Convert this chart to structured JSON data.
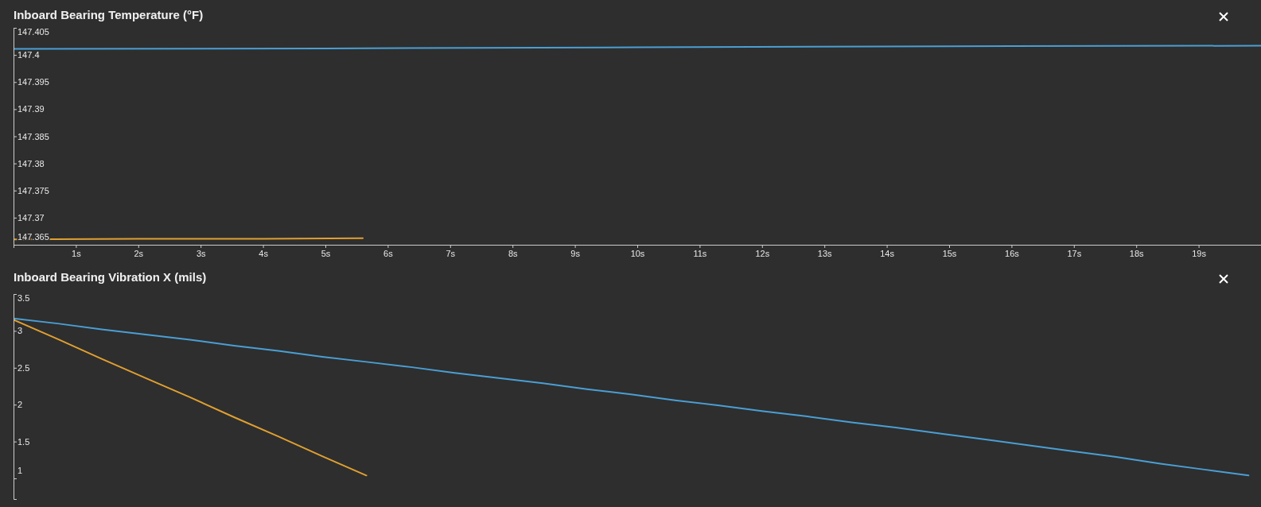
{
  "chart_data": [
    {
      "type": "line",
      "title": "Inboard Bearing Temperature (°F)",
      "xlim": [
        0,
        20
      ],
      "xticks": [
        {
          "value": 1,
          "label": "1s"
        },
        {
          "value": 2,
          "label": "2s"
        },
        {
          "value": 3,
          "label": "3s"
        },
        {
          "value": 4,
          "label": "4s"
        },
        {
          "value": 5,
          "label": "5s"
        },
        {
          "value": 6,
          "label": "6s"
        },
        {
          "value": 7,
          "label": "7s"
        },
        {
          "value": 8,
          "label": "8s"
        },
        {
          "value": 9,
          "label": "9s"
        },
        {
          "value": 10,
          "label": "10s"
        },
        {
          "value": 11,
          "label": "11s"
        },
        {
          "value": 12,
          "label": "12s"
        },
        {
          "value": 13,
          "label": "13s"
        },
        {
          "value": 14,
          "label": "14s"
        },
        {
          "value": 15,
          "label": "15s"
        },
        {
          "value": 16,
          "label": "16s"
        },
        {
          "value": 17,
          "label": "17s"
        },
        {
          "value": 18,
          "label": "18s"
        },
        {
          "value": 19,
          "label": "19s"
        }
      ],
      "ylim": [
        147.365,
        147.405
      ],
      "yticks": [
        147.365,
        147.37,
        147.375,
        147.38,
        147.385,
        147.39,
        147.395,
        147.4,
        147.405
      ],
      "series": [
        {
          "color": "#4a9fd4",
          "x": [
            0,
            5,
            10,
            15,
            20
          ],
          "values": [
            147.4011,
            147.4012,
            147.4014,
            147.4016,
            147.4017
          ]
        },
        {
          "color": "#e0a030",
          "x": [
            0,
            2,
            4,
            5.6
          ],
          "values": [
            147.366,
            147.3661,
            147.3661,
            147.3662
          ]
        }
      ]
    },
    {
      "type": "line",
      "title": "Inboard Bearing Vibration X (mils)",
      "categories": [
        null,
        null,
        null,
        null,
        null,
        null,
        null,
        null,
        null,
        null,
        null,
        null,
        null,
        null,
        null,
        null,
        null,
        null,
        null,
        null,
        null,
        null,
        null,
        null,
        null,
        null,
        null,
        null,
        null
      ],
      "ylim": [
        0.72,
        3.5
      ],
      "yticks": [
        1,
        1.5,
        2,
        2.5,
        3,
        3.5
      ],
      "tick_labels": "y",
      "series": [
        {
          "color": "#4a9fd4",
          "values": [
            3.17,
            3.1,
            3.02,
            2.95,
            2.88,
            2.8,
            2.73,
            2.65,
            2.58,
            2.51,
            2.43,
            2.36,
            2.29,
            2.21,
            2.14,
            2.06,
            1.99,
            1.91,
            1.84,
            1.76,
            1.69,
            1.61,
            1.53,
            1.45,
            1.37,
            1.29,
            1.2,
            1.12,
            1.04
          ]
        },
        {
          "color": "#e0a030",
          "values": [
            3.15,
            2.89,
            2.62,
            2.36,
            2.1,
            1.83,
            1.57,
            1.3,
            1.04,
            null,
            null,
            null,
            null,
            null,
            null,
            null,
            null,
            null,
            null,
            null,
            null,
            null,
            null,
            null,
            null,
            null,
            null,
            null,
            null
          ]
        }
      ]
    }
  ]
}
